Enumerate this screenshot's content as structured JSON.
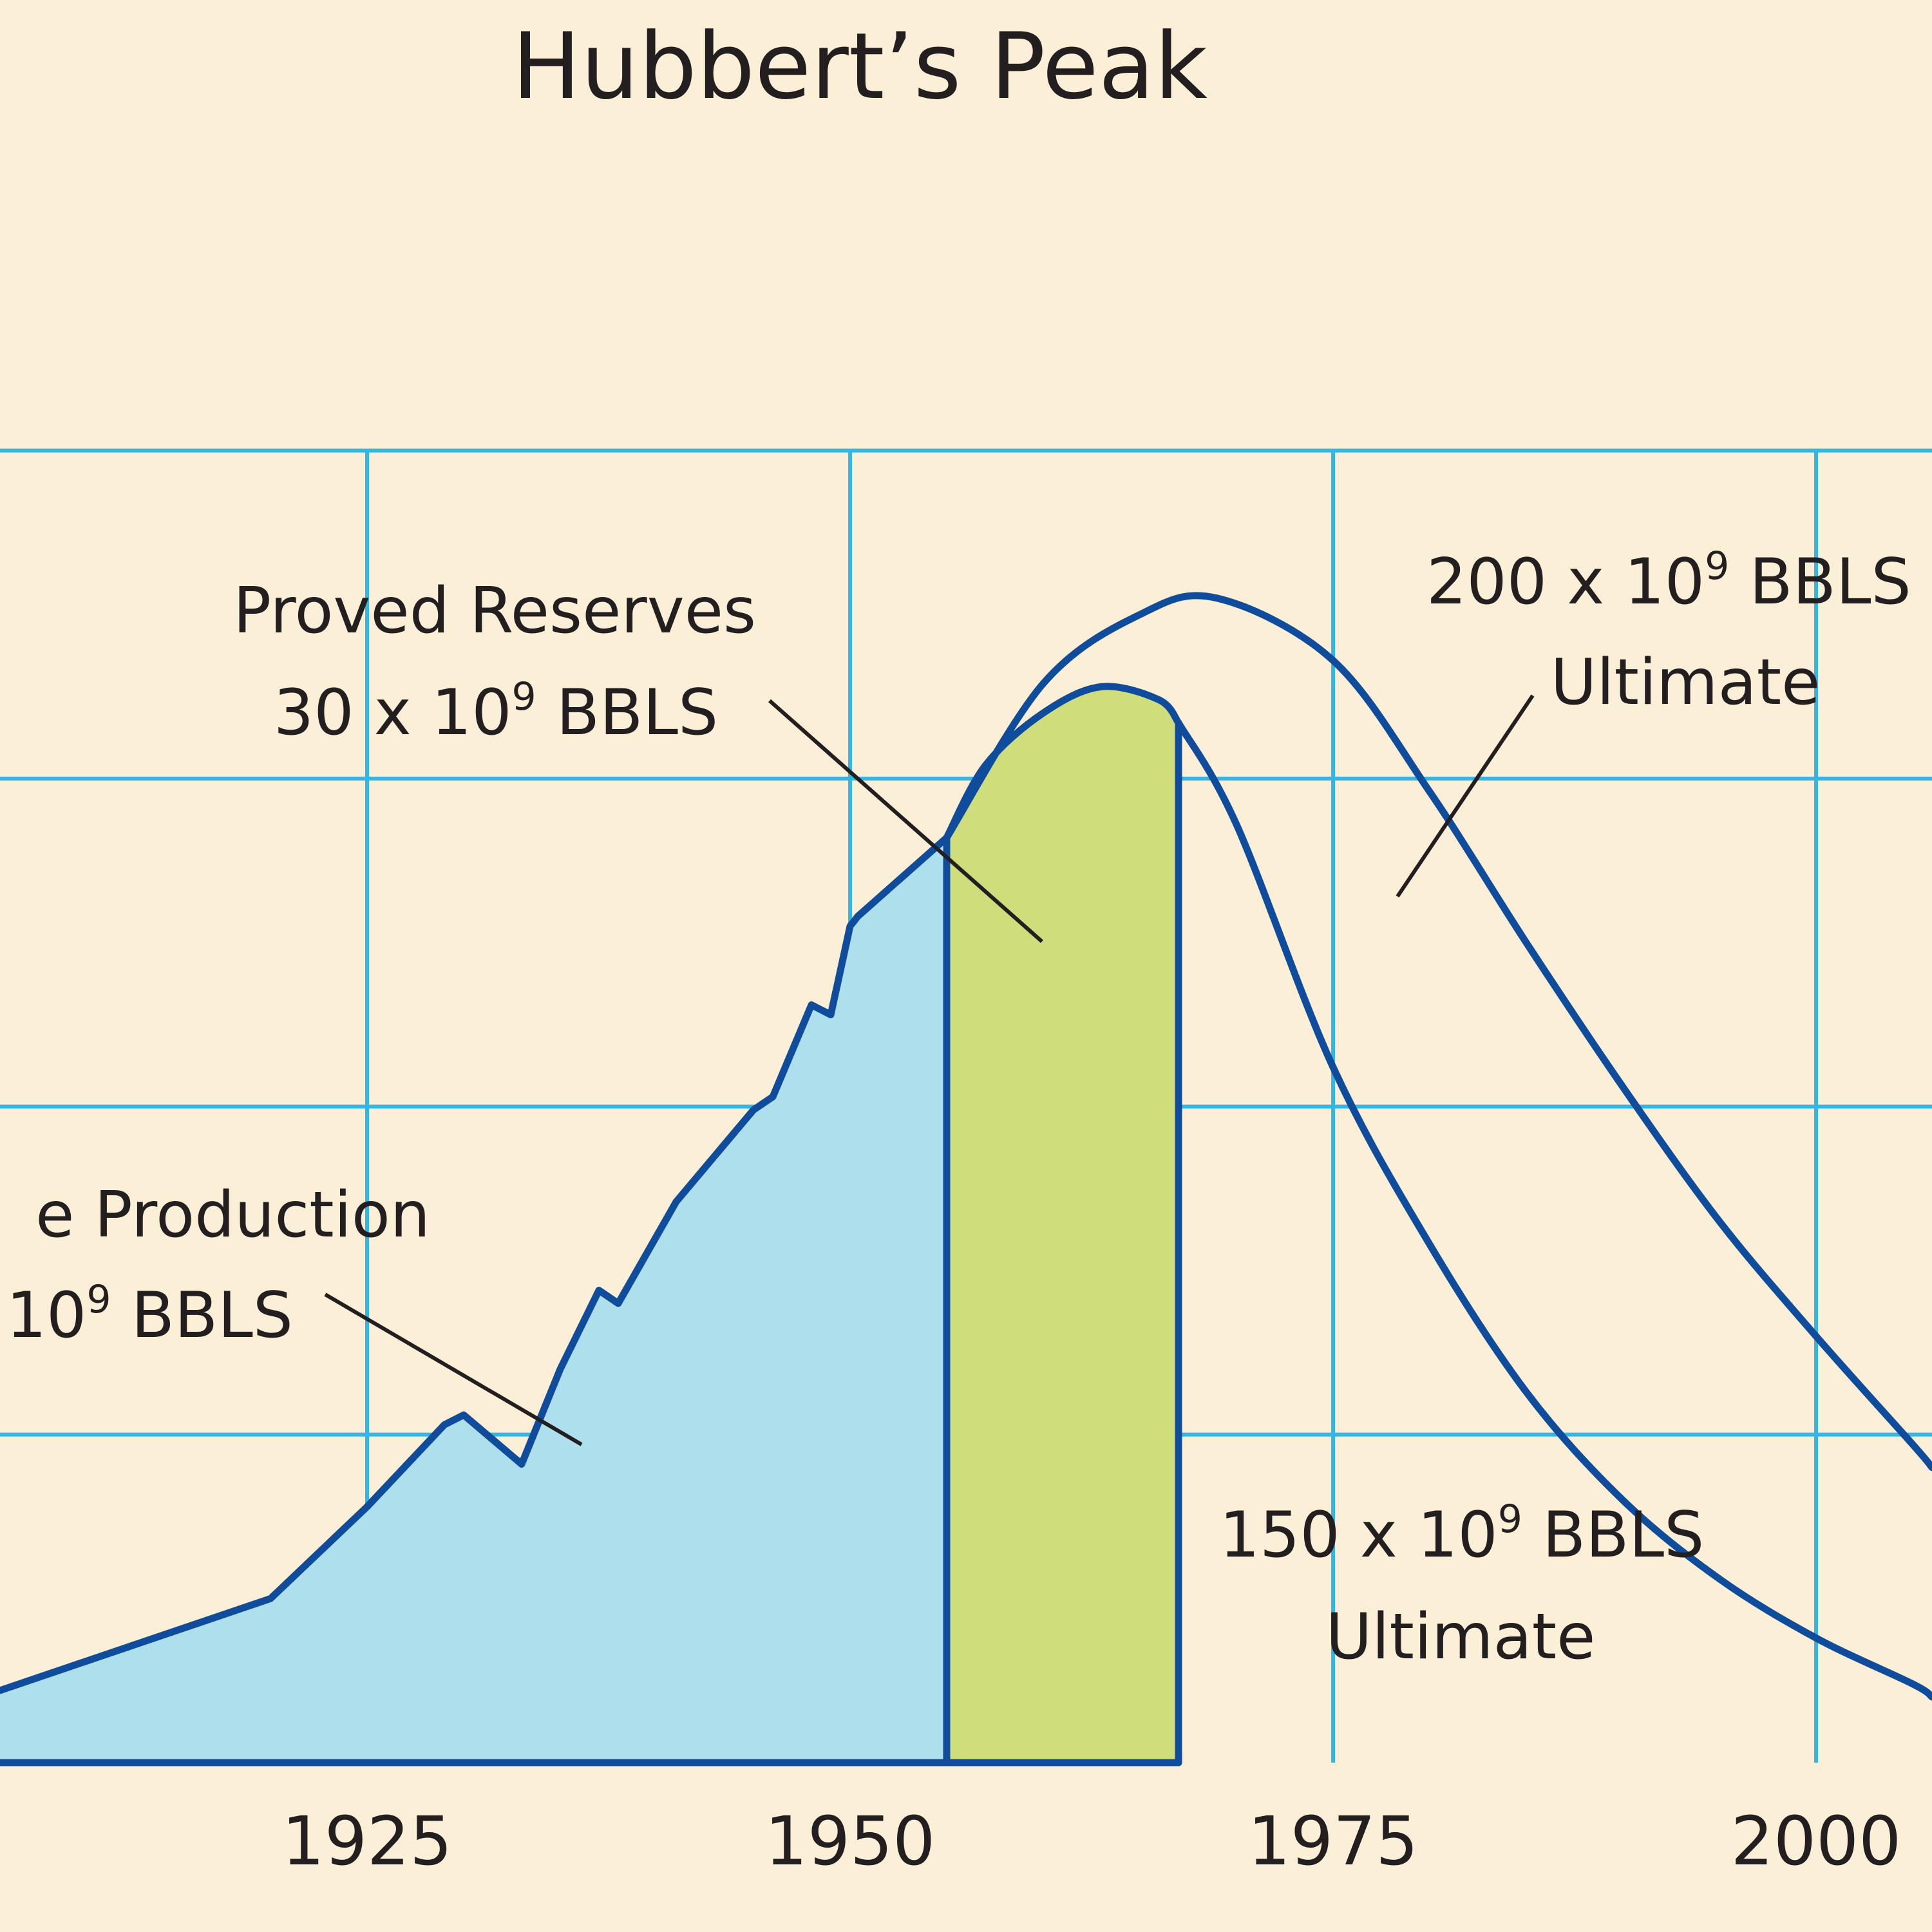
{
  "chart_data": {
    "type": "area",
    "title": "Hubbert’s Peak",
    "x_ticks": [
      1925,
      1950,
      1975,
      2000
    ],
    "xlim": [
      1906,
      2006
    ],
    "ylim": [
      0,
      4.5
    ],
    "grid": true,
    "colors": {
      "background": "#fbf0d7",
      "grid": "#33b5e5",
      "line": "#0f4d9c",
      "cumulative_fill": "#aedfec",
      "reserves_fill": "#cfdd7a",
      "annotation": "#231f20"
    },
    "series": [
      {
        "id": "cumulative",
        "x": [
          1906,
          1920,
          1925,
          1929,
          1930,
          1933,
          1935,
          1937,
          1938,
          1941,
          1945,
          1946,
          1948,
          1949,
          1950,
          1950.4,
          1955
        ],
        "y": [
          0.22,
          0.5,
          0.78,
          1.03,
          1.06,
          0.91,
          1.2,
          1.44,
          1.4,
          1.71,
          1.99,
          2.03,
          2.31,
          2.28,
          2.55,
          2.58,
          2.82
        ]
      },
      {
        "id": "reserves",
        "x": [
          1955,
          1957,
          1960,
          1963,
          1966,
          1967
        ],
        "y": [
          2.82,
          3.04,
          3.2,
          3.28,
          3.24,
          3.17
        ]
      },
      {
        "id": "ultimate_150",
        "x": [
          1967,
          1970,
          1975,
          1980,
          1985,
          1990,
          1995,
          2000,
          2005,
          2006
        ],
        "y": [
          3.17,
          2.86,
          2.12,
          1.58,
          1.13,
          0.8,
          0.56,
          0.38,
          0.24,
          0.2
        ]
      },
      {
        "id": "ultimate_200",
        "x": [
          1955,
          1960,
          1965,
          1969,
          1975,
          1980,
          1985,
          1990,
          1995,
          2000,
          2005,
          2006
        ],
        "y": [
          2.82,
          3.29,
          3.5,
          3.55,
          3.36,
          2.96,
          2.5,
          2.06,
          1.65,
          1.3,
          0.97,
          0.9
        ]
      }
    ],
    "shaded_regions": [
      {
        "id": "cumulative_production",
        "x_from": 1906,
        "x_to": 1955
      },
      {
        "id": "proved_reserves",
        "x_from": 1955,
        "x_to": 1967
      }
    ],
    "annotations": {
      "proved_reserves": {
        "line1": "Proved Reserves",
        "line2": "30 x 10",
        "sup": "9",
        "suffix": " BBLS"
      },
      "cumulative_production": {
        "line1": "e Production",
        "line2": "10",
        "sup": "9",
        "suffix": " BBLS"
      },
      "ultimate_200": {
        "line1": "200 x 10",
        "sup": "9",
        "suffix": " BBLS",
        "line2": "Ultimate"
      },
      "ultimate_150": {
        "line1": "150 x 10",
        "sup": "9",
        "suffix": " BBLS",
        "line2": "Ultimate"
      }
    }
  }
}
